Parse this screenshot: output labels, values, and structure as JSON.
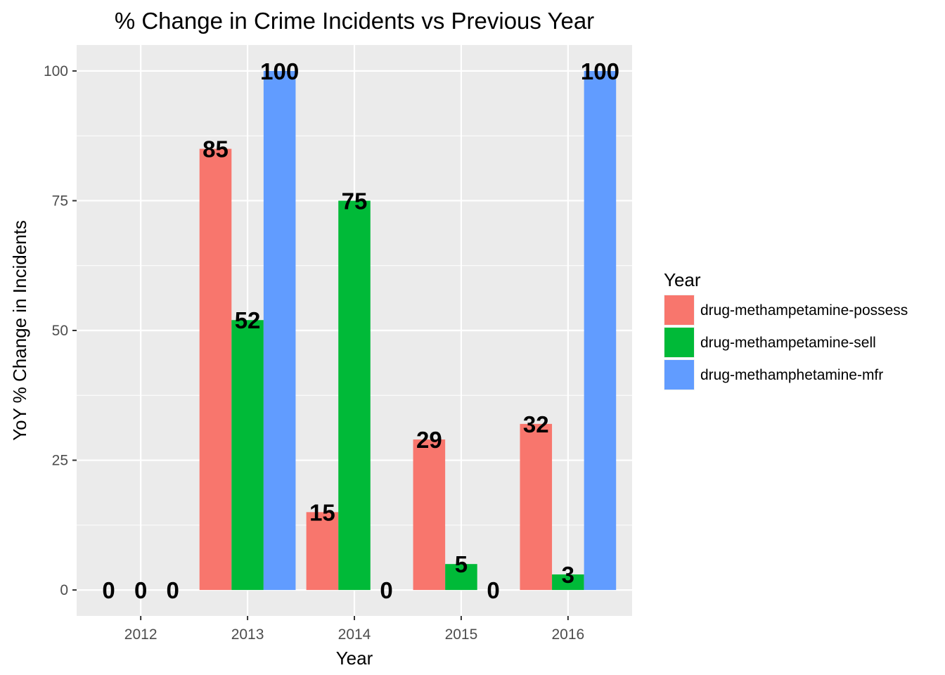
{
  "chart_data": {
    "type": "bar",
    "title": "% Change in Crime Incidents vs Previous Year",
    "xlabel": "Year",
    "ylabel": "YoY % Change in Incidents",
    "categories": [
      "2012",
      "2013",
      "2014",
      "2015",
      "2016"
    ],
    "ylim": [
      -5,
      105
    ],
    "yticks": [
      0,
      25,
      50,
      75,
      100
    ],
    "grid": true,
    "legend": {
      "title": "Year",
      "position": "right"
    },
    "series": [
      {
        "name": "drug-methampetamine-possess",
        "color": "#F8766D",
        "values": [
          0,
          85,
          15,
          29,
          32
        ]
      },
      {
        "name": "drug-methampetamine-sell",
        "color": "#00BA38",
        "values": [
          0,
          52,
          75,
          5,
          3
        ]
      },
      {
        "name": "drug-methamphetamine-mfr",
        "color": "#619CFF",
        "values": [
          0,
          100,
          0,
          0,
          100
        ]
      }
    ]
  }
}
